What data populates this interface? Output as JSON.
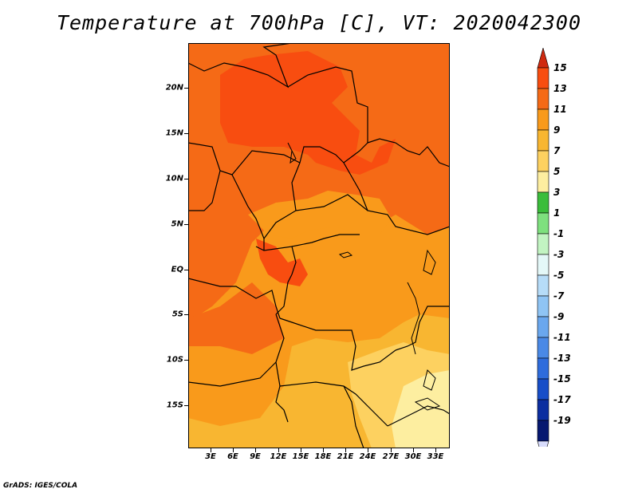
{
  "title": "Temperature at 700hPa [C], VT: 2020042300",
  "credit": "GrADS: IGES/COLA",
  "map": {
    "variable": "Temperature at 700hPa",
    "units": "C",
    "valid_time": "2020042300",
    "region": "Central Africa",
    "lon_range_deg": [
      0,
      35
    ],
    "lat_range_deg": [
      -20,
      24
    ],
    "lat_ticks": [
      "20N",
      "15N",
      "10N",
      "5N",
      "EQ",
      "5S",
      "10S",
      "15S"
    ],
    "lon_ticks": [
      "3E",
      "6E",
      "9E",
      "12E",
      "15E",
      "18E",
      "21E",
      "24E",
      "27E",
      "30E",
      "33E"
    ],
    "colors": {
      "t13": "#f84d10",
      "t11": "#f56a16",
      "t9": "#f99a1b",
      "t7": "#f8b631",
      "t5": "#fdd160",
      "t3": "#fdeea0"
    }
  },
  "colorbar": {
    "labels": [
      "15",
      "13",
      "11",
      "9",
      "7",
      "5",
      "3",
      "1",
      "-1",
      "-3",
      "-5",
      "-7",
      "-9",
      "-11",
      "-13",
      "-15",
      "-17",
      "-19"
    ],
    "colors": [
      "#cf2a10",
      "#f84d10",
      "#f56a16",
      "#f99a1b",
      "#f8b631",
      "#fdd160",
      "#fdeea0",
      "#3bbd3b",
      "#7ee07e",
      "#c2f4c2",
      "#e4f8f8",
      "#b6dcf8",
      "#8fc4f4",
      "#6aa7ee",
      "#4a89e6",
      "#2e6cdc",
      "#174ec8",
      "#0c2ea0",
      "#061870",
      "#d8dcfc"
    ]
  }
}
